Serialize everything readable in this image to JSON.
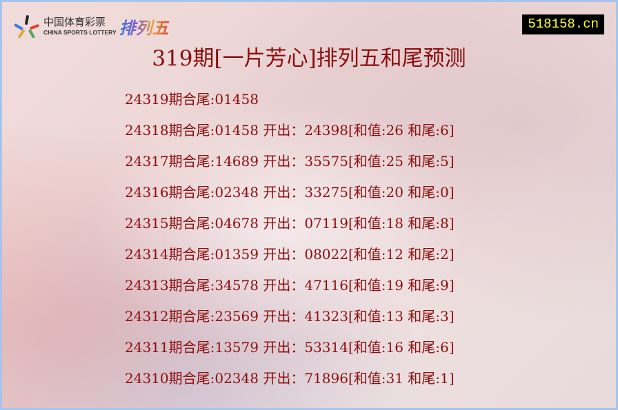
{
  "logo": {
    "cn": "中国体育彩票",
    "en": "CHINA SPORTS LOTTERY",
    "game": "排列五"
  },
  "site_badge": "518158.cn",
  "title": "319期[一片芳心]排列五和尾预测",
  "rows": [
    "24319期合尾:01458",
    "24318期合尾:01458 开出：24398[和值:26 和尾:6]",
    "24317期合尾:14689 开出：35575[和值:25 和尾:5]",
    "24316期合尾:02348 开出：33275[和值:20 和尾:0]",
    "24315期合尾:04678 开出：07119[和值:18 和尾:8]",
    "24314期合尾:01359 开出：08022[和值:12 和尾:2]",
    "24313期合尾:34578 开出：47116[和值:19 和尾:9]",
    "24312期合尾:23569 开出：41323[和值:13 和尾:3]",
    "24311期合尾:13579 开出：53314[和值:16 和尾:6]",
    "24310期合尾:02348 开出：71896[和值:31 和尾:1]"
  ],
  "colors": {
    "text": "#8b0d0d",
    "badge_bg": "#000000",
    "badge_text": "#ffff33",
    "border": "#a9c4ea"
  }
}
